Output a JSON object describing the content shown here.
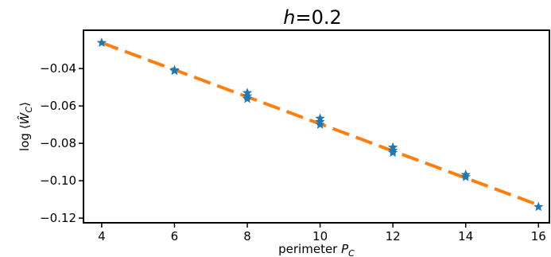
{
  "chart_data": {
    "type": "scatter",
    "title": "h=0.2",
    "title_parts": {
      "var": "h",
      "rest": "=0.2"
    },
    "xlabel": "perimeter P_C",
    "xlabel_parts": {
      "text": "perimeter ",
      "var": "P",
      "sub": "C"
    },
    "ylabel": "log ⟨Ŵ_C⟩",
    "ylabel_parts": {
      "prefix": "log ⟨",
      "var": "Ŵ",
      "sub": "C",
      "suffix": "⟩"
    },
    "xlim": [
      3.5,
      16.3
    ],
    "ylim": [
      -0.1225,
      -0.0195
    ],
    "xticks": [
      4,
      6,
      8,
      10,
      12,
      14,
      16
    ],
    "xtick_labels": [
      "4",
      "6",
      "8",
      "10",
      "12",
      "14",
      "16"
    ],
    "yticks": [
      -0.04,
      -0.06,
      -0.08,
      -0.1,
      -0.12
    ],
    "ytick_labels": [
      "−0.04",
      "−0.06",
      "−0.08",
      "−0.10",
      "−0.12"
    ],
    "grid": false,
    "series": [
      {
        "style": "star-markers",
        "color": "#1f77b4",
        "points": [
          {
            "x": 4,
            "y": -0.0262
          },
          {
            "x": 6,
            "y": -0.0408
          },
          {
            "x": 6,
            "y": -0.0412
          },
          {
            "x": 8,
            "y": -0.053
          },
          {
            "x": 8,
            "y": -0.0548
          },
          {
            "x": 8,
            "y": -0.0562
          },
          {
            "x": 10,
            "y": -0.0667
          },
          {
            "x": 10,
            "y": -0.0685
          },
          {
            "x": 10,
            "y": -0.07
          },
          {
            "x": 12,
            "y": -0.0822
          },
          {
            "x": 12,
            "y": -0.0838
          },
          {
            "x": 12,
            "y": -0.085
          },
          {
            "x": 14,
            "y": -0.0968
          },
          {
            "x": 14,
            "y": -0.098
          },
          {
            "x": 16,
            "y": -0.114
          }
        ]
      },
      {
        "style": "dashed-line",
        "color": "#ff7f0e",
        "points": [
          {
            "x": 4,
            "y": -0.0262
          },
          {
            "x": 16,
            "y": -0.113
          }
        ]
      }
    ]
  }
}
